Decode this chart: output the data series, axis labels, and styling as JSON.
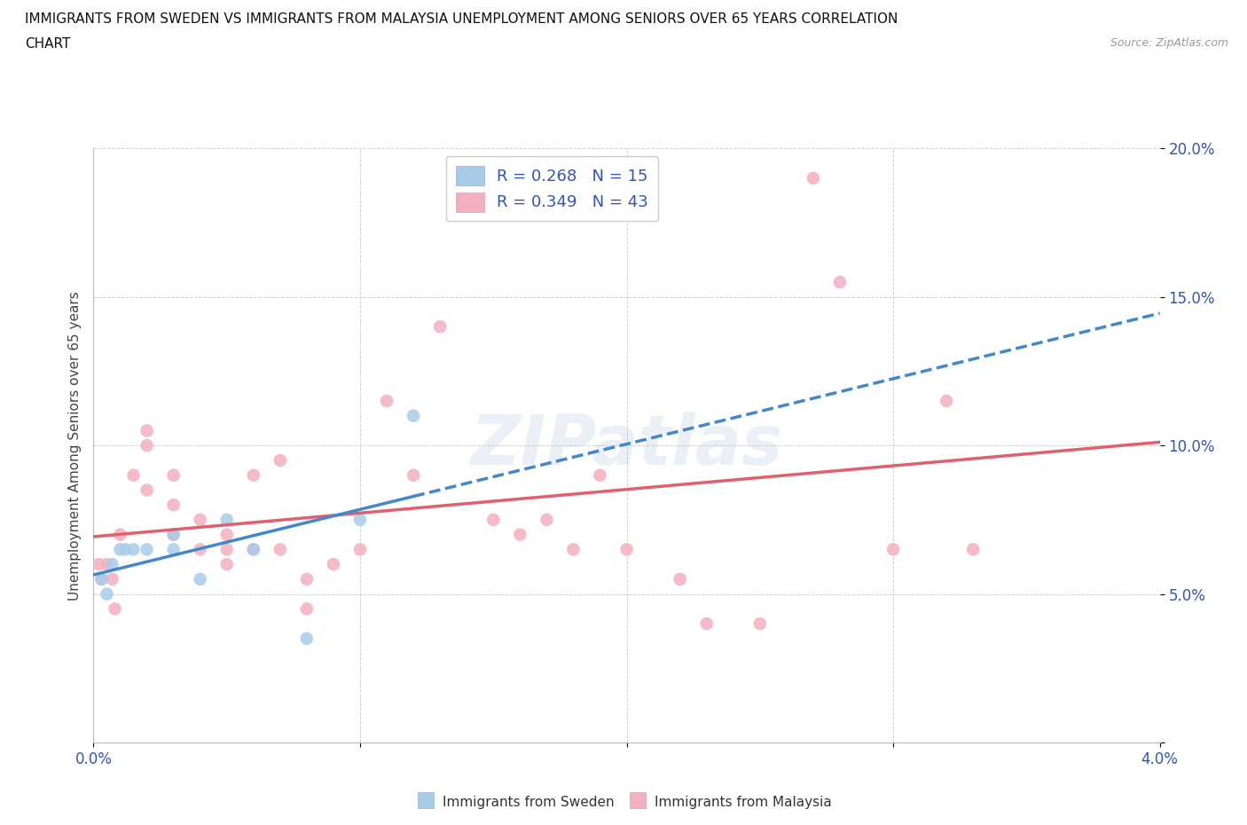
{
  "title_line1": "IMMIGRANTS FROM SWEDEN VS IMMIGRANTS FROM MALAYSIA UNEMPLOYMENT AMONG SENIORS OVER 65 YEARS CORRELATION",
  "title_line2": "CHART",
  "source": "Source: ZipAtlas.com",
  "ylabel": "Unemployment Among Seniors over 65 years",
  "xlim": [
    0.0,
    0.04
  ],
  "ylim": [
    0.0,
    0.2
  ],
  "sweden_fill_color": "#a8cce8",
  "malaysia_fill_color": "#f4b0c0",
  "sweden_R": 0.268,
  "sweden_N": 15,
  "malaysia_R": 0.349,
  "malaysia_N": 43,
  "sweden_line_color": "#4488cc",
  "malaysia_line_color": "#e06070",
  "legend_text_color": "#3355bb",
  "ytick_color": "#3355bb",
  "xtick_color": "#3355bb",
  "sweden_scatter_x": [
    0.0003,
    0.0005,
    0.0007,
    0.001,
    0.0012,
    0.0015,
    0.002,
    0.003,
    0.003,
    0.004,
    0.005,
    0.006,
    0.008,
    0.01,
    0.012
  ],
  "sweden_scatter_y": [
    0.055,
    0.05,
    0.06,
    0.065,
    0.065,
    0.065,
    0.065,
    0.07,
    0.065,
    0.055,
    0.075,
    0.065,
    0.035,
    0.075,
    0.11
  ],
  "malaysia_scatter_x": [
    0.0002,
    0.0003,
    0.0005,
    0.0007,
    0.0008,
    0.001,
    0.0015,
    0.002,
    0.002,
    0.002,
    0.003,
    0.003,
    0.003,
    0.004,
    0.004,
    0.005,
    0.005,
    0.005,
    0.006,
    0.006,
    0.007,
    0.007,
    0.008,
    0.008,
    0.009,
    0.01,
    0.011,
    0.012,
    0.013,
    0.015,
    0.016,
    0.017,
    0.018,
    0.019,
    0.02,
    0.022,
    0.023,
    0.025,
    0.027,
    0.028,
    0.03,
    0.032,
    0.033
  ],
  "malaysia_scatter_y": [
    0.06,
    0.055,
    0.06,
    0.055,
    0.045,
    0.07,
    0.09,
    0.105,
    0.1,
    0.085,
    0.09,
    0.08,
    0.07,
    0.075,
    0.065,
    0.06,
    0.07,
    0.065,
    0.065,
    0.09,
    0.095,
    0.065,
    0.055,
    0.045,
    0.06,
    0.065,
    0.115,
    0.09,
    0.14,
    0.075,
    0.07,
    0.075,
    0.065,
    0.09,
    0.065,
    0.055,
    0.04,
    0.04,
    0.19,
    0.155,
    0.065,
    0.115,
    0.065
  ],
  "watermark_text": "ZIPatlas",
  "background_color": "#ffffff",
  "grid_color": "#cccccc"
}
